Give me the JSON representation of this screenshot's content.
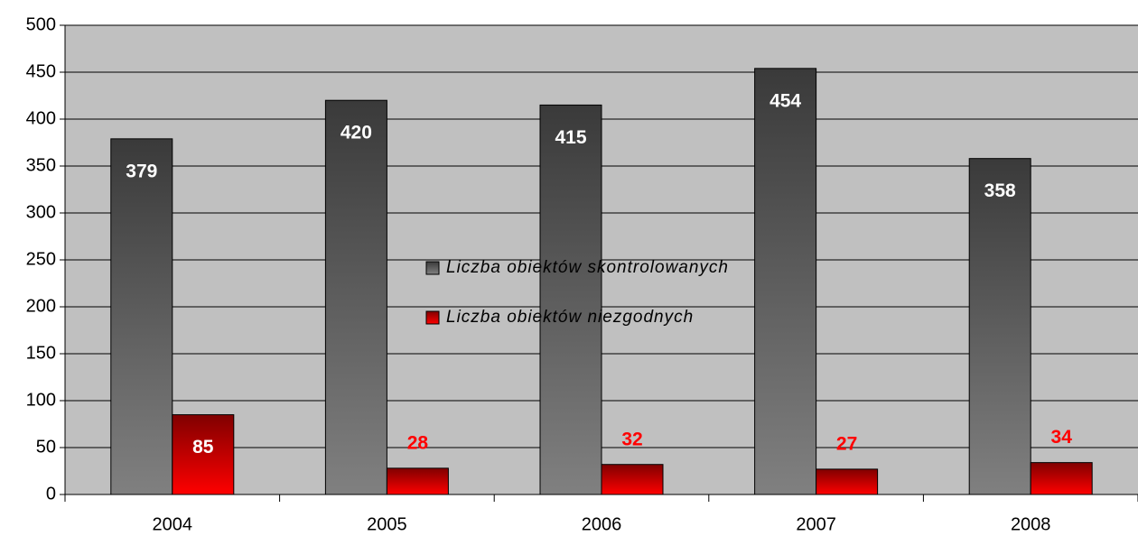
{
  "chart_data": {
    "type": "bar",
    "categories": [
      "2004",
      "2005",
      "2006",
      "2007",
      "2008"
    ],
    "series": [
      {
        "name": "Liczba obiektów skontrolowanych",
        "color": "#808080",
        "values": [
          379,
          420,
          415,
          454,
          358
        ]
      },
      {
        "name": "Liczba obiektów niezgodnych",
        "color": "#ff0000",
        "values": [
          85,
          28,
          32,
          27,
          34
        ]
      }
    ],
    "ylim": [
      0,
      500
    ],
    "yticks": [
      0,
      50,
      100,
      150,
      200,
      250,
      300,
      350,
      400,
      450,
      500
    ],
    "grid": true,
    "legend": "center"
  }
}
